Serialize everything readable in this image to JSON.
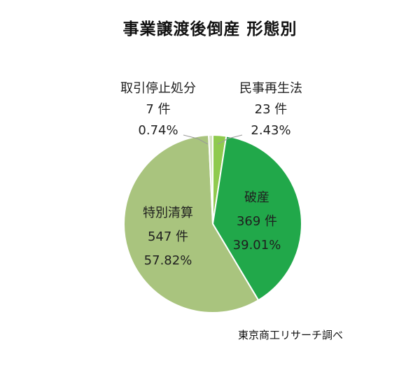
{
  "title": "事業譲渡後倒産  形態別",
  "source": "東京商工リサーチ調べ",
  "chart_data": {
    "type": "pie",
    "title": "事業譲渡後倒産  形態別",
    "start_angle_deg": 0,
    "direction": "clockwise",
    "slices": [
      {
        "label": "民事再生法",
        "count": 23,
        "count_text": "23 件",
        "percent": 2.43,
        "percent_text": "2.43%",
        "color": "#8fca4e"
      },
      {
        "label": "破産",
        "count": 369,
        "count_text": "369 件",
        "percent": 39.01,
        "percent_text": "39.01%",
        "color": "#21a84a"
      },
      {
        "label": "特別清算",
        "count": 547,
        "count_text": "547 件",
        "percent": 57.82,
        "percent_text": "57.82%",
        "color": "#a9c47e"
      },
      {
        "label": "取引停止処分",
        "count": 7,
        "count_text": "7 件",
        "percent": 0.74,
        "percent_text": "0.74%",
        "color": "#d7e3c2"
      }
    ]
  }
}
